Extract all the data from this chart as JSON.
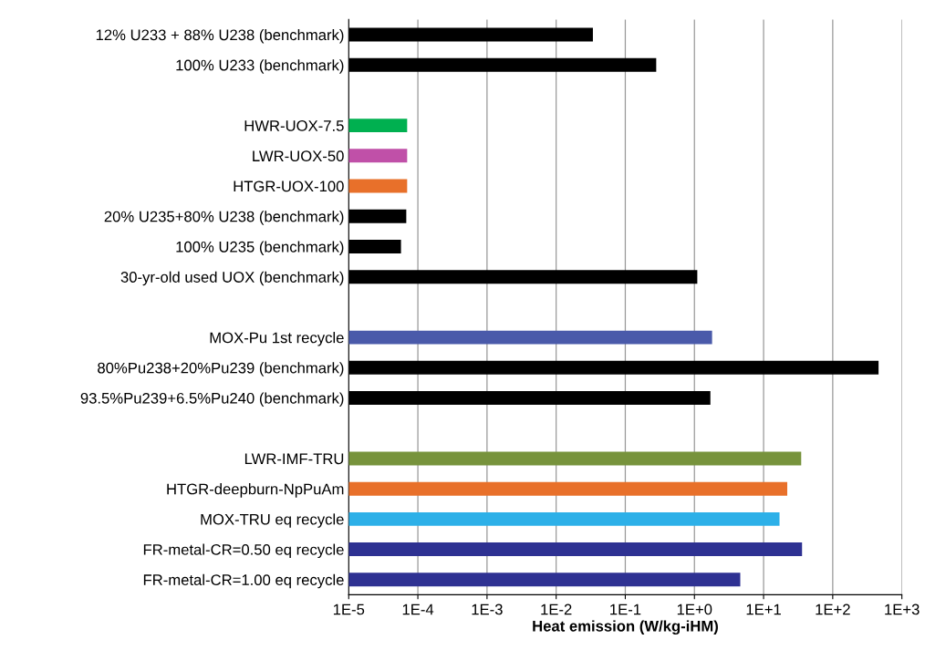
{
  "chart_data": {
    "type": "bar",
    "orientation": "horizontal",
    "log": "x",
    "xlabel": "Heat emission (W/kg-iHM)",
    "categories": [
      "12% U233 + 88% U238 (benchmark)",
      "100% U233 (benchmark)",
      null,
      "HWR-UOX-7.5",
      "LWR-UOX-50",
      "HTGR-UOX-100",
      "20% U235+80% U238 (benchmark)",
      "100% U235 (benchmark)",
      "30-yr-old used UOX (benchmark)",
      null,
      "MOX-Pu 1st recycle",
      "80%Pu238+20%Pu239 (benchmark)",
      "93.5%Pu239+6.5%Pu240 (benchmark)",
      null,
      "LWR-IMF-TRU",
      "HTGR-deepburn-NpPuAm",
      "MOX-TRU eq recycle",
      "FR-metal-CR=0.50 eq recycle",
      "FR-metal-CR=1.00 eq recycle"
    ],
    "values": [
      0.034,
      0.28,
      null,
      7e-05,
      7e-05,
      7e-05,
      6.8e-05,
      5.7e-05,
      1.1,
      null,
      1.8,
      460,
      1.7,
      null,
      35,
      22,
      17,
      36,
      4.6
    ],
    "colors": [
      "#000000",
      "#000000",
      null,
      "#00b050",
      "#c050a8",
      "#e8702a",
      "#000000",
      "#000000",
      "#000000",
      null,
      "#4a5aaa",
      "#000000",
      "#000000",
      null,
      "#77933c",
      "#e8702a",
      "#2db0e8",
      "#2e3192",
      "#2e3192"
    ],
    "xlim": [
      1e-05,
      1000
    ],
    "xticks": [
      {
        "value": 1e-05,
        "label": "1E-5"
      },
      {
        "value": 0.0001,
        "label": "1E-4"
      },
      {
        "value": 0.001,
        "label": "1E-3"
      },
      {
        "value": 0.01,
        "label": "1E-2"
      },
      {
        "value": 0.1,
        "label": "1E-1"
      },
      {
        "value": 1,
        "label": "1E+0"
      },
      {
        "value": 10,
        "label": "1E+1"
      },
      {
        "value": 100,
        "label": "1E+2"
      },
      {
        "value": 1000,
        "label": "1E+3"
      }
    ],
    "grid": "x",
    "legend": false
  }
}
